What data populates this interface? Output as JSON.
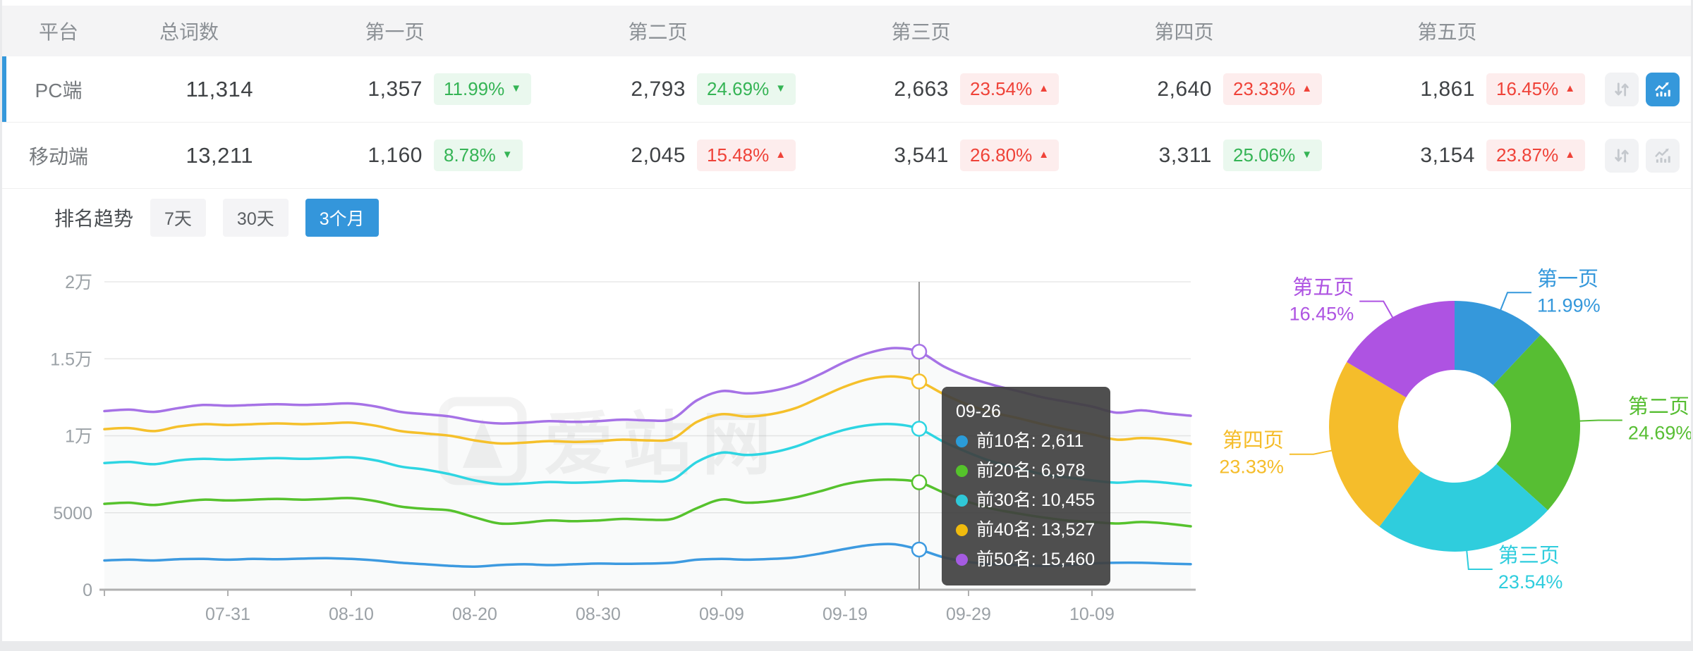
{
  "table": {
    "headers": [
      "平台",
      "总词数",
      "第一页",
      "第二页",
      "第三页",
      "第四页",
      "第五页"
    ],
    "rows": [
      {
        "platform": "PC端",
        "selected": true,
        "total": "11,314",
        "chart_active": true,
        "pages": [
          {
            "count": "1,357",
            "pct": "11.99%",
            "dir": "down",
            "arrow": "▼"
          },
          {
            "count": "2,793",
            "pct": "24.69%",
            "dir": "down",
            "arrow": "▼"
          },
          {
            "count": "2,663",
            "pct": "23.54%",
            "dir": "up",
            "arrow": "▲"
          },
          {
            "count": "2,640",
            "pct": "23.33%",
            "dir": "up",
            "arrow": "▲"
          },
          {
            "count": "1,861",
            "pct": "16.45%",
            "dir": "up",
            "arrow": "▲"
          }
        ]
      },
      {
        "platform": "移动端",
        "selected": false,
        "total": "13,211",
        "chart_active": false,
        "pages": [
          {
            "count": "1,160",
            "pct": "8.78%",
            "dir": "down",
            "arrow": "▼"
          },
          {
            "count": "2,045",
            "pct": "15.48%",
            "dir": "up",
            "arrow": "▲"
          },
          {
            "count": "3,541",
            "pct": "26.80%",
            "dir": "up",
            "arrow": "▲"
          },
          {
            "count": "3,311",
            "pct": "25.06%",
            "dir": "down",
            "arrow": "▼"
          },
          {
            "count": "3,154",
            "pct": "23.87%",
            "dir": "up",
            "arrow": "▲"
          }
        ]
      }
    ]
  },
  "trend": {
    "title": "排名趋势",
    "tabs": [
      {
        "label": "7天",
        "active": false
      },
      {
        "label": "30天",
        "active": false
      },
      {
        "label": "3个月",
        "active": true
      }
    ],
    "watermark": "爱站网"
  },
  "tooltip": {
    "date": "09-26",
    "items": [
      {
        "label": "前10名",
        "value": "2,611",
        "color": "#2B9CD8"
      },
      {
        "label": "前20名",
        "value": "6,978",
        "color": "#55C32B"
      },
      {
        "label": "前30名",
        "value": "10,455",
        "color": "#2FC8D8"
      },
      {
        "label": "前40名",
        "value": "13,527",
        "color": "#F0BB0E"
      },
      {
        "label": "前50名",
        "value": "15,460",
        "color": "#A55BE2"
      }
    ]
  },
  "chart_data": [
    {
      "type": "line",
      "title": "排名趋势",
      "x_tick_labels": [
        "07-31",
        "08-10",
        "08-20",
        "08-30",
        "09-09",
        "09-19",
        "09-29",
        "10-09"
      ],
      "x_tick_days": [
        10,
        20,
        30,
        40,
        50,
        60,
        70,
        80
      ],
      "span_days": 88,
      "ylim": [
        0,
        20000
      ],
      "y_ticks": [
        {
          "v": 0,
          "label": "0"
        },
        {
          "v": 5000,
          "label": "5000"
        },
        {
          "v": 10000,
          "label": "1万"
        },
        {
          "v": 15000,
          "label": "1.5万"
        },
        {
          "v": 20000,
          "label": "2万"
        }
      ],
      "grid": true,
      "marker_index": 33,
      "marker_date": "09-26",
      "series": [
        {
          "name": "前10名",
          "color": "#3D9AE0",
          "values": [
            1900,
            1950,
            1900,
            1980,
            2000,
            1950,
            2000,
            1980,
            2020,
            2050,
            2000,
            1900,
            1750,
            1650,
            1550,
            1500,
            1600,
            1650,
            1600,
            1650,
            1700,
            1680,
            1700,
            1750,
            1950,
            2000,
            1950,
            2000,
            2100,
            2350,
            2650,
            2900,
            2950,
            2611,
            2100,
            1800,
            1650,
            1600,
            1550,
            1600,
            1700,
            1750,
            1750,
            1700,
            1660
          ]
        },
        {
          "name": "前20名",
          "color": "#56C22D",
          "values": [
            5580,
            5650,
            5500,
            5700,
            5850,
            5800,
            5850,
            5900,
            5850,
            5900,
            5950,
            5750,
            5400,
            5250,
            5150,
            4700,
            4300,
            4350,
            4500,
            4450,
            4500,
            4600,
            4550,
            4600,
            5300,
            5860,
            5650,
            5750,
            6000,
            6400,
            6850,
            7100,
            7150,
            6978,
            6300,
            5700,
            5250,
            4950,
            4700,
            4500,
            4400,
            4300,
            4400,
            4300,
            4120
          ]
        },
        {
          "name": "前30名",
          "color": "#2ED5E2",
          "values": [
            8230,
            8300,
            8150,
            8400,
            8500,
            8450,
            8500,
            8550,
            8500,
            8550,
            8600,
            8400,
            8000,
            7800,
            7500,
            7100,
            6860,
            6900,
            7000,
            6950,
            7000,
            7090,
            7050,
            7150,
            8300,
            8900,
            8750,
            8900,
            9300,
            9900,
            10400,
            10700,
            10750,
            10455,
            9600,
            8900,
            8300,
            7900,
            7500,
            7300,
            7100,
            6950,
            7050,
            6950,
            6770
          ]
        },
        {
          "name": "前40名",
          "color": "#F5C02B",
          "values": [
            10430,
            10500,
            10300,
            10600,
            10750,
            10700,
            10750,
            10800,
            10750,
            10800,
            10850,
            10650,
            10300,
            10150,
            10000,
            9700,
            9500,
            9550,
            9650,
            9600,
            9650,
            9750,
            9700,
            9800,
            10900,
            11400,
            11250,
            11400,
            11800,
            12500,
            13200,
            13700,
            13850,
            13527,
            12700,
            12000,
            11500,
            11150,
            10750,
            10400,
            10100,
            9750,
            9850,
            9750,
            9470
          ]
        },
        {
          "name": "前50名",
          "color": "#A672E6",
          "values": [
            11600,
            11700,
            11550,
            11800,
            12000,
            11950,
            12000,
            12050,
            12000,
            12050,
            12100,
            11900,
            11550,
            11400,
            11250,
            10950,
            10800,
            10850,
            10950,
            10900,
            10950,
            11050,
            11000,
            11100,
            12300,
            12900,
            12750,
            12900,
            13300,
            14000,
            14800,
            15400,
            15700,
            15460,
            14500,
            13800,
            13300,
            12900,
            12500,
            12200,
            11900,
            11500,
            11650,
            11450,
            11300
          ]
        }
      ]
    },
    {
      "type": "pie",
      "donut": true,
      "items": [
        {
          "label": "第一页",
          "value": 11.99,
          "pct": "11.99%",
          "color": "#3598DB"
        },
        {
          "label": "第二页",
          "value": 24.69,
          "pct": "24.69%",
          "color": "#57BE33"
        },
        {
          "label": "第三页",
          "value": 23.54,
          "pct": "23.54%",
          "color": "#2FCDDD"
        },
        {
          "label": "第四页",
          "value": 23.33,
          "pct": "23.33%",
          "color": "#F5BD2B"
        },
        {
          "label": "第五页",
          "value": 16.45,
          "pct": "16.45%",
          "color": "#AE53E2"
        }
      ]
    }
  ]
}
